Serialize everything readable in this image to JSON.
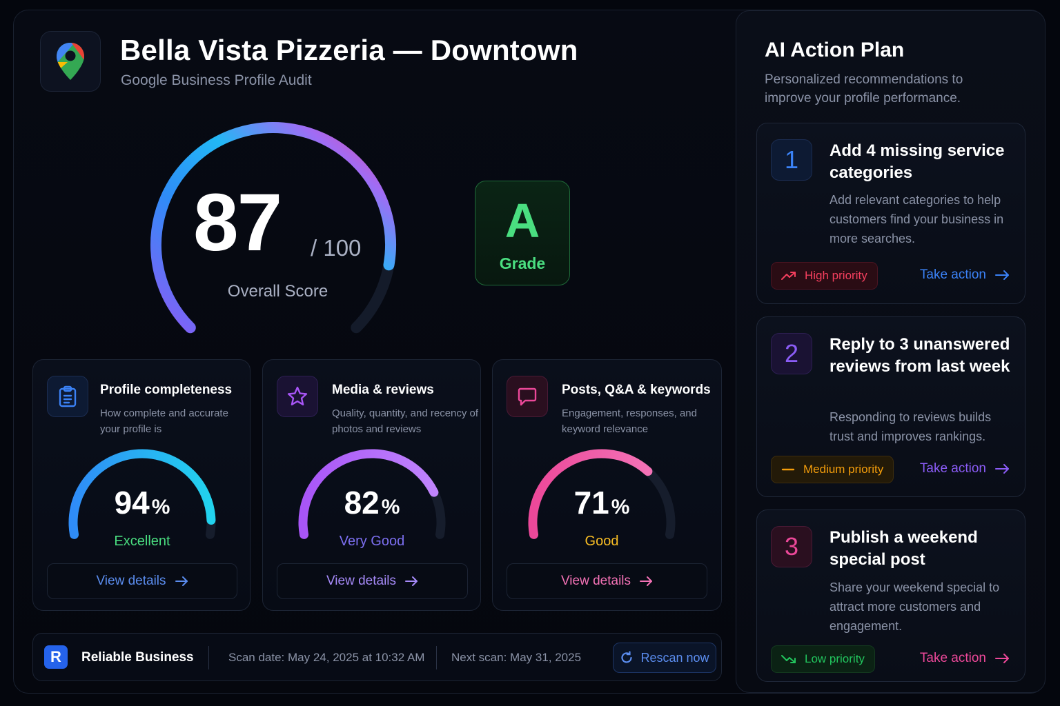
{
  "header": {
    "title": "Bella Vista Pizzeria — Downtown",
    "subtitle": "Google Business Profile Audit",
    "logo_icon": "map-pin-icon"
  },
  "overall": {
    "score": "87",
    "max": "/ 100",
    "caption": "Overall Score",
    "score_fraction": 0.87
  },
  "grade": {
    "letter": "A",
    "label": "Grade",
    "color": "#4ade80"
  },
  "cards": [
    {
      "title": "Profile completeness",
      "description": "How complete and accurate your profile is",
      "value": "94",
      "symbol": "%",
      "fraction": 0.94,
      "rating": "Excellent",
      "rating_color": "#4ade80",
      "icon": "clipboard-icon",
      "accent": "#3b82f6",
      "button": "View details"
    },
    {
      "title": "Media & reviews",
      "description": "Quality, quantity, and recency of photos and reviews",
      "value": "82",
      "symbol": "%",
      "fraction": 0.82,
      "rating": "Very Good",
      "rating_color": "#7c6ff0",
      "icon": "star-icon",
      "accent": "#a855f7",
      "button": "View details"
    },
    {
      "title": "Posts, Q&A & keywords",
      "description": "Engagement, responses, and keyword relevance",
      "value": "71",
      "symbol": "%",
      "fraction": 0.71,
      "rating": "Good",
      "rating_color": "#fbbf24",
      "icon": "chat-bubble-icon",
      "accent": "#ec4899",
      "button": "View details"
    }
  ],
  "footer": {
    "brand_letter": "R",
    "brand_name": "Reliable Business",
    "scan_date": "Scan date: May 24, 2025 at 10:32 AM",
    "next_scan": "Next scan: May 31, 2025",
    "rescan_label": "Rescan now"
  },
  "action_plan": {
    "title": "AI Action Plan",
    "subtitle": "Personalized recommendations to improve your profile performance.",
    "items": [
      {
        "number": "1",
        "title": "Add 4 missing service categories",
        "description": "Add relevant categories to help customers find your business in more searches.",
        "priority": "High priority",
        "priority_icon": "trending-up-icon",
        "priority_color": "#f43f5e",
        "action": "Take action",
        "accent": "#3b82f6"
      },
      {
        "number": "2",
        "title": "Reply to 3 unanswered reviews from last week",
        "description": "Responding to reviews builds trust and improves rankings.",
        "priority": "Medium priority",
        "priority_icon": "minus-icon",
        "priority_color": "#f59e0b",
        "action": "Take action",
        "accent": "#8b5cf6"
      },
      {
        "number": "3",
        "title": "Publish a weekend special post",
        "description": "Share your weekend special to attract more customers and engagement.",
        "priority": "Low priority",
        "priority_icon": "trending-down-icon",
        "priority_color": "#22c55e",
        "action": "Take action",
        "accent": "#ec4899"
      }
    ]
  }
}
